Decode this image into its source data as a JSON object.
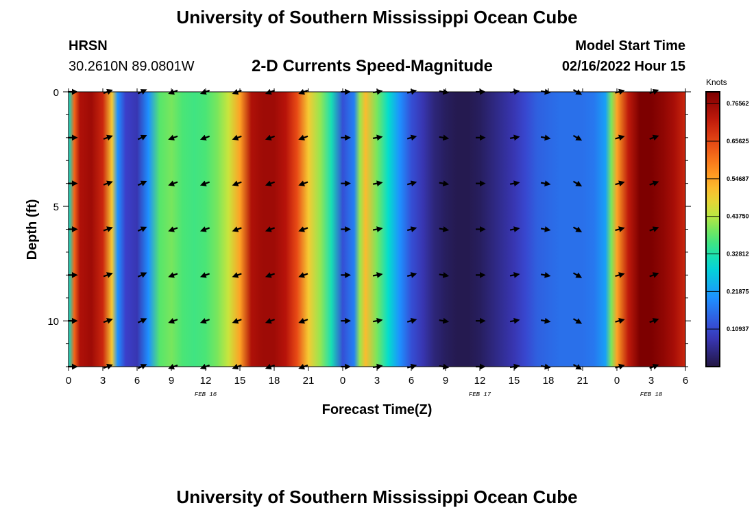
{
  "header": {
    "title": "University of Southern Mississippi Ocean Cube",
    "station": "HRSN",
    "coords": "30.2610N  89.0801W",
    "subtitle": "2-D Currents Speed-Magnitude",
    "model_start_label": "Model Start Time",
    "model_start_value": "02/16/2022 Hour 15"
  },
  "footer": {
    "title": "University of Southern Mississippi Ocean Cube"
  },
  "chart_data": {
    "type": "heatmap",
    "title": "2-D Currents Speed-Magnitude",
    "xlabel": "Forecast Time(Z)",
    "ylabel": "Depth (ft)",
    "x_range_hours": [
      0,
      54
    ],
    "ylim": [
      12,
      0
    ],
    "x_tick_labels": [
      "0",
      "3",
      "6",
      "9",
      "12",
      "15",
      "18",
      "21",
      "0",
      "3",
      "6",
      "9",
      "12",
      "15",
      "18",
      "21",
      "0",
      "3",
      "6"
    ],
    "y_ticks": [
      0,
      5,
      10
    ],
    "date_labels": [
      {
        "label": "FEB 16",
        "hour": 12
      },
      {
        "label": "FEB 17",
        "hour": 36
      },
      {
        "label": "FEB 18",
        "hour": 51
      }
    ],
    "colorbar": {
      "units": "Knots",
      "min": 0,
      "max": 0.8,
      "tick_labels": [
        "0.76562",
        "0.65625",
        "0.54687",
        "0.43750",
        "0.32812",
        "0.21875",
        "0.10937"
      ],
      "tick_values": [
        0.76562,
        0.65625,
        0.54687,
        0.4375,
        0.32812,
        0.21875,
        0.10937
      ]
    },
    "speed_profile": {
      "hours": [
        0,
        0.5,
        1,
        2,
        3,
        3.8,
        4.3,
        5,
        6,
        7,
        8,
        9,
        10,
        11,
        12,
        13,
        14,
        15,
        16,
        17,
        18,
        19,
        20,
        21,
        22,
        23,
        24,
        25,
        25.5,
        26,
        27,
        28,
        29,
        30,
        31,
        32,
        33,
        34,
        35,
        36,
        37,
        38,
        39,
        40,
        41,
        42,
        43,
        44,
        45,
        46,
        47,
        47.5,
        48,
        49,
        50,
        51,
        52,
        53,
        54
      ],
      "speed": [
        0.3,
        0.62,
        0.74,
        0.76,
        0.7,
        0.5,
        0.2,
        0.1,
        0.08,
        0.2,
        0.38,
        0.4,
        0.37,
        0.36,
        0.37,
        0.4,
        0.45,
        0.55,
        0.74,
        0.76,
        0.76,
        0.73,
        0.65,
        0.5,
        0.42,
        0.32,
        0.12,
        0.18,
        0.42,
        0.52,
        0.4,
        0.3,
        0.2,
        0.12,
        0.08,
        0.04,
        0.02,
        0.01,
        0.01,
        0.02,
        0.04,
        0.06,
        0.08,
        0.11,
        0.14,
        0.15,
        0.16,
        0.16,
        0.16,
        0.17,
        0.22,
        0.4,
        0.55,
        0.72,
        0.8,
        0.8,
        0.78,
        0.75,
        0.7
      ]
    },
    "arrow_hours": [
      0.3,
      3.4,
      6.4,
      9.2,
      12.0,
      14.8,
      17.7,
      20.6,
      24.2,
      27.0,
      30.0,
      32.8,
      36.0,
      39.0,
      41.7,
      44.5,
      48.2,
      51.2
    ],
    "arrow_depths": [
      0,
      2,
      4,
      6,
      8,
      10,
      12
    ],
    "arrow_direction_deg": [
      0,
      20,
      25,
      200,
      200,
      200,
      200,
      200,
      0,
      10,
      15,
      350,
      0,
      10,
      350,
      330,
      15,
      20
    ]
  }
}
